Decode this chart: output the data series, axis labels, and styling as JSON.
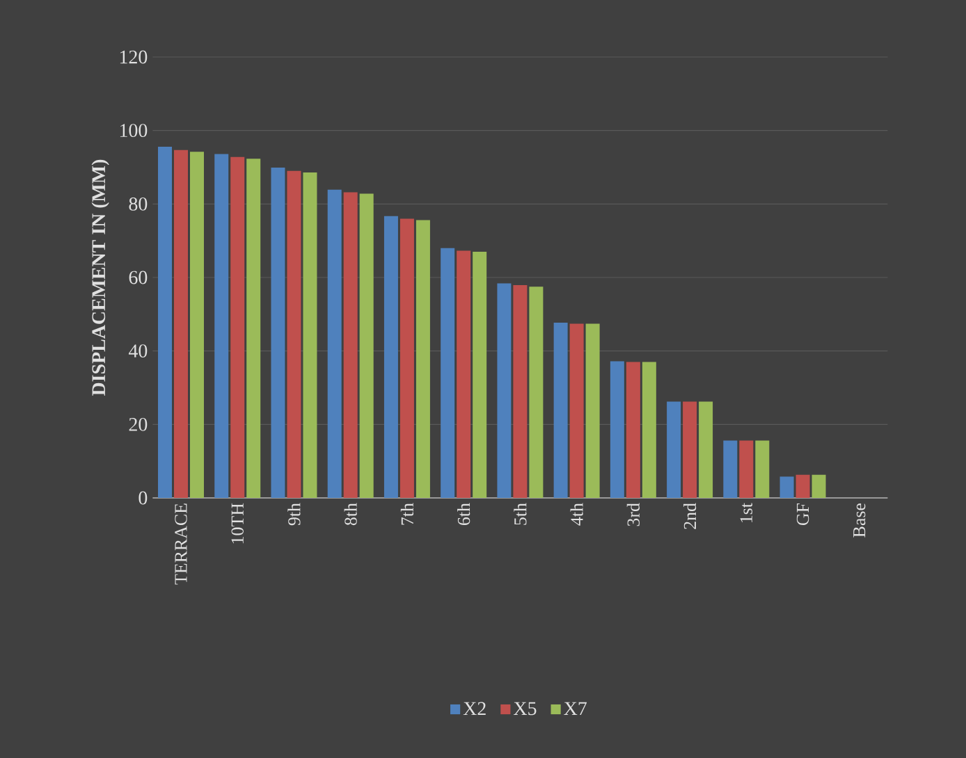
{
  "chart_data": {
    "type": "bar",
    "ylabel": "DISPLACEMENT IN (MM)",
    "categories": [
      "TERRACE",
      "10TH",
      "9th",
      "8th",
      "7th",
      "6th",
      "5th",
      "4th",
      "3rd",
      "2nd",
      "1st",
      "GF",
      "Base"
    ],
    "series": [
      {
        "name": "X2",
        "color": "#4f81bd",
        "values": [
          95.6,
          93.6,
          89.9,
          83.9,
          76.7,
          68.0,
          58.4,
          47.7,
          37.2,
          26.2,
          15.6,
          5.8,
          0
        ]
      },
      {
        "name": "X5",
        "color": "#c0504d",
        "values": [
          94.7,
          92.8,
          89.0,
          83.2,
          76.0,
          67.3,
          57.9,
          47.4,
          37.0,
          26.2,
          15.6,
          6.3,
          0
        ]
      },
      {
        "name": "X7",
        "color": "#9bbb59",
        "values": [
          94.2,
          92.3,
          88.6,
          82.8,
          75.6,
          67.0,
          57.5,
          47.4,
          37.0,
          26.2,
          15.6,
          6.3,
          0
        ]
      }
    ],
    "ylim": [
      0,
      120
    ],
    "yticks": [
      0,
      20,
      40,
      60,
      80,
      100,
      120
    ],
    "grid": "y",
    "legend": "bottom"
  }
}
